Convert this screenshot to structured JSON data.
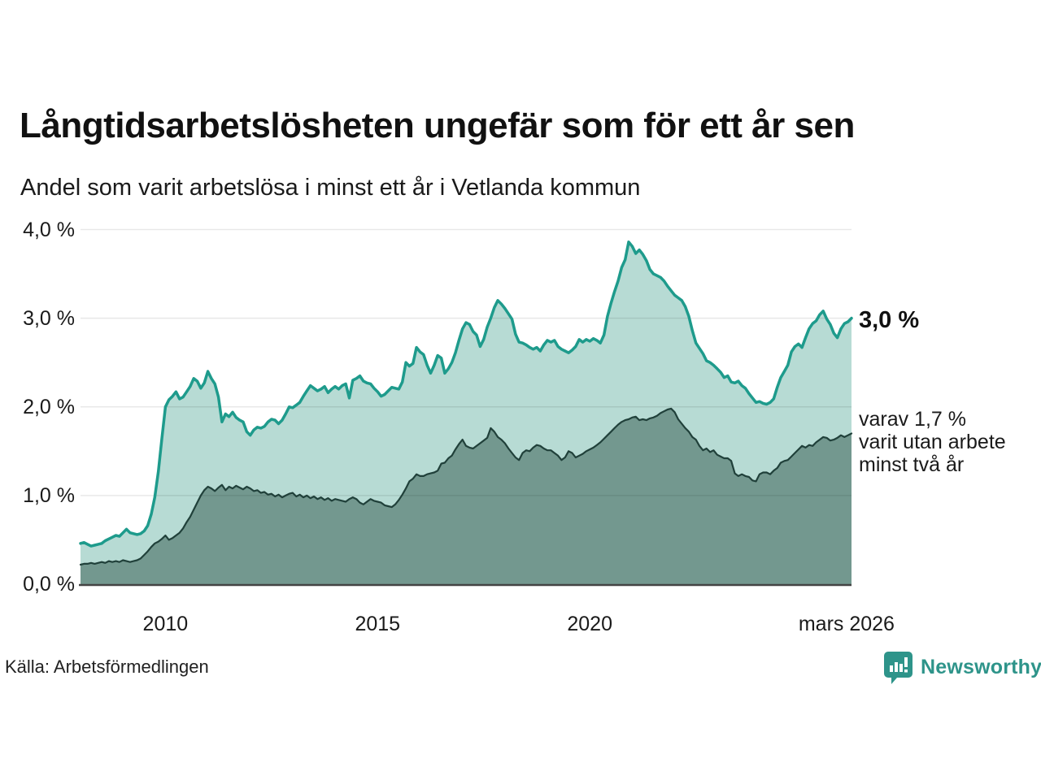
{
  "page": {
    "title": "Långtidsarbetslösheten ungefär som för ett år sen",
    "subtitle": "Andel som varit arbetslösa i minst ett år i Vetlanda kommun",
    "source": "Källa: Arbetsförmedlingen",
    "brand": "Newsworthy"
  },
  "annotations": {
    "end_value": "3,0 %",
    "secondary": "varav 1,7 %\nvarit utan arbete\nminst två år"
  },
  "colors": {
    "series1_line": "#1e9b8c",
    "series1_fill": "#b7dbd4",
    "series2_line": "#20403a",
    "series2_fill": "#73988f",
    "gridline": "rgba(0,0,0,0.09)",
    "baseline": "#444444",
    "brand_teal": "#2e948a"
  },
  "chart_data": {
    "type": "area",
    "title": "Långtidsarbetslösheten ungefär som för ett år sen",
    "subtitle": "Andel som varit arbetslösa i minst ett år i Vetlanda kommun",
    "x_unit": "year (monthly data)",
    "x_start": 2008.0,
    "x_step": 0.0833333,
    "x_end": 2026.1667,
    "ylim": [
      0,
      4
    ],
    "grid": "horizontal only",
    "legend_position": "right-side annotations",
    "y_ticks": [
      {
        "v": 0,
        "label": "0,0 %"
      },
      {
        "v": 1,
        "label": "1,0 %"
      },
      {
        "v": 2,
        "label": "2,0 %"
      },
      {
        "v": 3,
        "label": "3,0 %"
      },
      {
        "v": 4,
        "label": "4,0 %"
      }
    ],
    "x_ticks": [
      {
        "v": 2010,
        "label": "2010"
      },
      {
        "v": 2015,
        "label": "2015"
      },
      {
        "v": 2020,
        "label": "2020"
      },
      {
        "v": 2026.05,
        "label": "mars 2026"
      }
    ],
    "series": [
      {
        "name": "Andel arbetslösa minst ett år",
        "end_label": "3,0 %",
        "line_color": "#1e9b8c",
        "fill_color": "#b7dbd4",
        "line_width": 3.5,
        "values": [
          0.46,
          0.47,
          0.45,
          0.43,
          0.44,
          0.45,
          0.46,
          0.49,
          0.51,
          0.53,
          0.55,
          0.54,
          0.58,
          0.62,
          0.58,
          0.57,
          0.56,
          0.57,
          0.6,
          0.66,
          0.79,
          0.98,
          1.27,
          1.64,
          2.0,
          2.08,
          2.12,
          2.17,
          2.09,
          2.11,
          2.17,
          2.23,
          2.32,
          2.29,
          2.21,
          2.27,
          2.4,
          2.32,
          2.26,
          2.11,
          1.83,
          1.92,
          1.89,
          1.94,
          1.88,
          1.85,
          1.83,
          1.72,
          1.68,
          1.74,
          1.77,
          1.76,
          1.78,
          1.83,
          1.86,
          1.85,
          1.81,
          1.85,
          1.92,
          2.0,
          1.99,
          2.02,
          2.05,
          2.12,
          2.18,
          2.24,
          2.21,
          2.18,
          2.2,
          2.23,
          2.16,
          2.2,
          2.23,
          2.2,
          2.24,
          2.26,
          2.1,
          2.3,
          2.32,
          2.35,
          2.29,
          2.27,
          2.26,
          2.21,
          2.17,
          2.12,
          2.14,
          2.18,
          2.22,
          2.21,
          2.2,
          2.28,
          2.5,
          2.46,
          2.49,
          2.67,
          2.62,
          2.59,
          2.47,
          2.38,
          2.47,
          2.58,
          2.55,
          2.38,
          2.43,
          2.5,
          2.61,
          2.75,
          2.88,
          2.95,
          2.93,
          2.85,
          2.81,
          2.68,
          2.76,
          2.9,
          3.0,
          3.12,
          3.2,
          3.16,
          3.11,
          3.05,
          2.99,
          2.82,
          2.73,
          2.72,
          2.7,
          2.67,
          2.65,
          2.67,
          2.63,
          2.7,
          2.75,
          2.73,
          2.75,
          2.68,
          2.65,
          2.63,
          2.61,
          2.64,
          2.68,
          2.76,
          2.73,
          2.76,
          2.74,
          2.77,
          2.75,
          2.72,
          2.81,
          3.02,
          3.17,
          3.3,
          3.42,
          3.57,
          3.66,
          3.86,
          3.81,
          3.73,
          3.77,
          3.72,
          3.65,
          3.55,
          3.5,
          3.48,
          3.46,
          3.42,
          3.36,
          3.31,
          3.26,
          3.23,
          3.2,
          3.13,
          3.02,
          2.86,
          2.72,
          2.66,
          2.6,
          2.52,
          2.5,
          2.47,
          2.43,
          2.39,
          2.33,
          2.35,
          2.28,
          2.27,
          2.29,
          2.24,
          2.21,
          2.15,
          2.1,
          2.05,
          2.06,
          2.04,
          2.03,
          2.05,
          2.09,
          2.22,
          2.33,
          2.4,
          2.47,
          2.62,
          2.68,
          2.71,
          2.67,
          2.78,
          2.88,
          2.94,
          2.97,
          3.04,
          3.08,
          2.99,
          2.93,
          2.83,
          2.78,
          2.88,
          2.94,
          2.96,
          3.0
        ]
      },
      {
        "name": "varav utan arbete minst två år",
        "end_label": "varav 1,7 % varit utan arbete minst två år",
        "line_color": "#20403a",
        "fill_color": "#73988f",
        "line_width": 2.2,
        "values": [
          0.22,
          0.23,
          0.23,
          0.24,
          0.23,
          0.24,
          0.25,
          0.24,
          0.26,
          0.25,
          0.26,
          0.25,
          0.27,
          0.26,
          0.25,
          0.26,
          0.27,
          0.29,
          0.33,
          0.37,
          0.42,
          0.46,
          0.48,
          0.51,
          0.55,
          0.5,
          0.52,
          0.55,
          0.58,
          0.63,
          0.7,
          0.76,
          0.84,
          0.92,
          1.0,
          1.06,
          1.1,
          1.08,
          1.05,
          1.09,
          1.12,
          1.06,
          1.1,
          1.08,
          1.11,
          1.09,
          1.07,
          1.1,
          1.08,
          1.05,
          1.06,
          1.03,
          1.04,
          1.01,
          1.02,
          0.99,
          1.01,
          0.98,
          1.0,
          1.02,
          1.03,
          0.99,
          1.01,
          0.98,
          1.0,
          0.97,
          0.99,
          0.96,
          0.98,
          0.95,
          0.97,
          0.94,
          0.96,
          0.95,
          0.94,
          0.93,
          0.96,
          0.98,
          0.96,
          0.92,
          0.9,
          0.93,
          0.96,
          0.94,
          0.93,
          0.92,
          0.89,
          0.88,
          0.87,
          0.9,
          0.95,
          1.01,
          1.08,
          1.16,
          1.19,
          1.24,
          1.22,
          1.22,
          1.24,
          1.25,
          1.26,
          1.28,
          1.36,
          1.37,
          1.42,
          1.45,
          1.52,
          1.58,
          1.63,
          1.56,
          1.54,
          1.53,
          1.56,
          1.59,
          1.62,
          1.65,
          1.76,
          1.72,
          1.66,
          1.63,
          1.59,
          1.53,
          1.48,
          1.43,
          1.4,
          1.48,
          1.51,
          1.5,
          1.54,
          1.57,
          1.56,
          1.53,
          1.51,
          1.51,
          1.48,
          1.45,
          1.4,
          1.43,
          1.5,
          1.48,
          1.43,
          1.45,
          1.47,
          1.5,
          1.52,
          1.54,
          1.57,
          1.6,
          1.64,
          1.68,
          1.72,
          1.76,
          1.8,
          1.83,
          1.85,
          1.86,
          1.88,
          1.89,
          1.85,
          1.86,
          1.85,
          1.87,
          1.88,
          1.9,
          1.93,
          1.95,
          1.97,
          1.98,
          1.94,
          1.86,
          1.81,
          1.76,
          1.72,
          1.66,
          1.63,
          1.56,
          1.51,
          1.53,
          1.49,
          1.51,
          1.46,
          1.44,
          1.42,
          1.42,
          1.39,
          1.25,
          1.22,
          1.24,
          1.22,
          1.21,
          1.17,
          1.16,
          1.24,
          1.26,
          1.26,
          1.24,
          1.28,
          1.31,
          1.37,
          1.39,
          1.4,
          1.44,
          1.48,
          1.52,
          1.56,
          1.54,
          1.57,
          1.56,
          1.6,
          1.63,
          1.66,
          1.65,
          1.62,
          1.63,
          1.65,
          1.68,
          1.66,
          1.68,
          1.7
        ]
      }
    ]
  }
}
